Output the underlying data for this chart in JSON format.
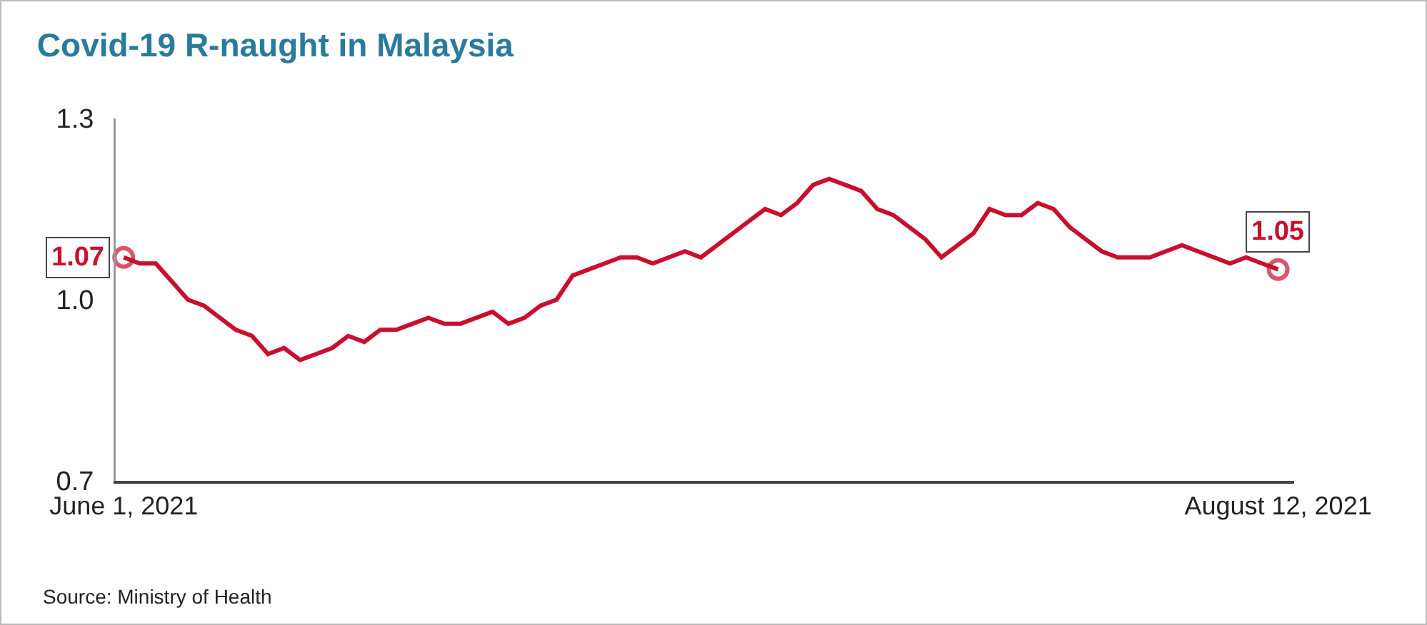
{
  "chart_data": {
    "type": "line",
    "title": "Covid-19 R-naught in Malaysia",
    "x": [
      "2021-06-01",
      "2021-06-02",
      "2021-06-03",
      "2021-06-04",
      "2021-06-05",
      "2021-06-06",
      "2021-06-07",
      "2021-06-08",
      "2021-06-09",
      "2021-06-10",
      "2021-06-11",
      "2021-06-12",
      "2021-06-13",
      "2021-06-14",
      "2021-06-15",
      "2021-06-16",
      "2021-06-17",
      "2021-06-18",
      "2021-06-19",
      "2021-06-20",
      "2021-06-21",
      "2021-06-22",
      "2021-06-23",
      "2021-06-24",
      "2021-06-25",
      "2021-06-26",
      "2021-06-27",
      "2021-06-28",
      "2021-06-29",
      "2021-06-30",
      "2021-07-01",
      "2021-07-02",
      "2021-07-03",
      "2021-07-04",
      "2021-07-05",
      "2021-07-06",
      "2021-07-07",
      "2021-07-08",
      "2021-07-09",
      "2021-07-10",
      "2021-07-11",
      "2021-07-12",
      "2021-07-13",
      "2021-07-14",
      "2021-07-15",
      "2021-07-16",
      "2021-07-17",
      "2021-07-18",
      "2021-07-19",
      "2021-07-20",
      "2021-07-21",
      "2021-07-22",
      "2021-07-23",
      "2021-07-24",
      "2021-07-25",
      "2021-07-26",
      "2021-07-27",
      "2021-07-28",
      "2021-07-29",
      "2021-07-30",
      "2021-07-31",
      "2021-08-01",
      "2021-08-02",
      "2021-08-03",
      "2021-08-04",
      "2021-08-05",
      "2021-08-06",
      "2021-08-07",
      "2021-08-08",
      "2021-08-09",
      "2021-08-10",
      "2021-08-11",
      "2021-08-12"
    ],
    "series": [
      {
        "color": "#c8102e",
        "values": [
          1.07,
          1.06,
          1.06,
          1.03,
          1.0,
          0.99,
          0.97,
          0.95,
          0.94,
          0.91,
          0.92,
          0.9,
          0.91,
          0.92,
          0.94,
          0.93,
          0.95,
          0.95,
          0.96,
          0.97,
          0.96,
          0.96,
          0.97,
          0.98,
          0.96,
          0.97,
          0.99,
          1.0,
          1.04,
          1.05,
          1.06,
          1.07,
          1.07,
          1.06,
          1.07,
          1.08,
          1.07,
          1.09,
          1.11,
          1.13,
          1.15,
          1.14,
          1.16,
          1.19,
          1.2,
          1.19,
          1.18,
          1.15,
          1.14,
          1.12,
          1.1,
          1.07,
          1.09,
          1.11,
          1.15,
          1.14,
          1.14,
          1.16,
          1.15,
          1.12,
          1.1,
          1.08,
          1.07,
          1.07,
          1.07,
          1.08,
          1.09,
          1.08,
          1.07,
          1.06,
          1.07,
          1.06,
          1.05
        ],
        "value_labels": [
          "1.07",
          null,
          null,
          null,
          null,
          null,
          null,
          null,
          null,
          null,
          null,
          null,
          null,
          null,
          null,
          null,
          null,
          null,
          null,
          null,
          null,
          null,
          null,
          null,
          null,
          null,
          null,
          null,
          null,
          null,
          null,
          null,
          null,
          null,
          null,
          null,
          null,
          null,
          null,
          null,
          null,
          null,
          null,
          null,
          null,
          null,
          null,
          null,
          null,
          null,
          null,
          null,
          null,
          null,
          null,
          null,
          null,
          null,
          null,
          null,
          null,
          null,
          null,
          null,
          null,
          null,
          null,
          null,
          null,
          null,
          null,
          null,
          "1.05"
        ]
      }
    ],
    "xlim": [
      "2021-05-31T12:00",
      "2021-08-13T00:00"
    ],
    "xticks": [
      {
        "value": "2021-06-01",
        "label": "June 1, 2021"
      },
      {
        "value": "2021-08-12",
        "label": "August 12, 2021"
      }
    ],
    "ylim": [
      0.7,
      1.3
    ],
    "yticks": [
      {
        "value": 0.7,
        "label": "0.7"
      },
      {
        "value": 1.0,
        "label": "1.0"
      },
      {
        "value": 1.3,
        "label": "1.3"
      }
    ],
    "grid": false,
    "annotations": [
      "Source: Ministry of Health"
    ]
  }
}
